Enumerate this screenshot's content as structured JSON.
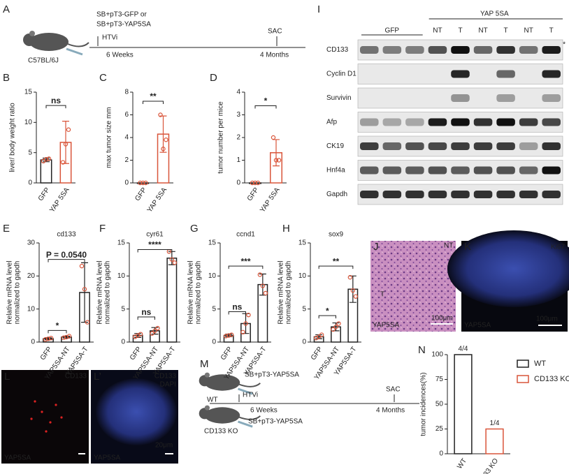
{
  "panels": {
    "A": {
      "label": "A",
      "injection": [
        "SB+pT3-GFP or",
        "SB+pT3-YAP5SA"
      ],
      "method": "HTVi",
      "end": "SAC",
      "t1": "6 Weeks",
      "t2": "4 Months",
      "strain": "C57BL/6J"
    },
    "I": {
      "label": "I",
      "group1": "GFP",
      "group2": "YAP 5SA",
      "lanes": [
        "NT",
        "T",
        "NT",
        "T",
        "NT",
        "T"
      ],
      "rows": [
        "CD133",
        "Cyclin D1",
        "Survivin",
        "Afp",
        "CK19",
        "Hnf4a",
        "Gapdh"
      ],
      "star": "*"
    },
    "J": {
      "label": "J",
      "nt": "NT",
      "t": "T",
      "scale": "100μm",
      "sample": "YAP5SA"
    },
    "K": {
      "label": "K",
      "stain": "Ki67",
      "scale": "100μm",
      "sample": "YAP5SA"
    },
    "L": {
      "label": "L",
      "stain": "CD133",
      "sample": "YAP5SA"
    },
    "L2": {
      "label": "L’",
      "stain": "CD133",
      "stain2": "DAPI",
      "scale": "20μm",
      "sample": "YAP5SA"
    },
    "M": {
      "label": "M",
      "wt": "WT",
      "injection1": "SB+pT3-YAP5SA",
      "method": "HTVi",
      "end": "SAC",
      "t1": "6 Weeks",
      "t2": "4 Months",
      "ko": "CD133 KO",
      "injection2": "SB+pT3-YAP5SA"
    }
  },
  "chart_data": [
    {
      "type": "bar",
      "panel": "B",
      "ylabel": "liver/ body weight ratio",
      "categories": [
        "GFP",
        "YAP 5SA"
      ],
      "colors": [
        "#222222",
        "#d9553a"
      ],
      "values": [
        3.8,
        6.7
      ],
      "errors": [
        0.3,
        3.5
      ],
      "points": [
        [
          3.6,
          3.9,
          4.0
        ],
        [
          3.4,
          6.4,
          8.8
        ]
      ],
      "ylim": [
        0,
        15
      ],
      "yticks": [
        0,
        5,
        10,
        15
      ],
      "annotations": [
        "ns"
      ]
    },
    {
      "type": "bar",
      "panel": "C",
      "ylabel": "max tumor size mm",
      "categories": [
        "GFP",
        "YAP 5SA"
      ],
      "colors": [
        "#222222",
        "#d9553a"
      ],
      "values": [
        0,
        4.3
      ],
      "errors": [
        0,
        1.6
      ],
      "points": [
        [
          0,
          0,
          0
        ],
        [
          6,
          3,
          3.8
        ]
      ],
      "ylim": [
        0,
        8
      ],
      "yticks": [
        0,
        2,
        4,
        6,
        8
      ],
      "annotations": [
        "**"
      ]
    },
    {
      "type": "bar",
      "panel": "D",
      "ylabel": "tumor number per mice",
      "categories": [
        "GFP",
        "YAP 5SA"
      ],
      "colors": [
        "#222222",
        "#d9553a"
      ],
      "values": [
        0,
        1.33
      ],
      "errors": [
        0,
        0.58
      ],
      "points": [
        [
          0,
          0,
          0
        ],
        [
          2,
          1,
          1
        ]
      ],
      "ylim": [
        0,
        4
      ],
      "yticks": [
        0,
        1,
        2,
        3,
        4
      ],
      "annotations": [
        "*"
      ]
    },
    {
      "type": "bar",
      "panel": "E",
      "title": "cd133",
      "ylabel": [
        "Relative mRNA level",
        "normalized to gapdh"
      ],
      "categories": [
        "GFP",
        "YAP5SA-NT",
        "YAP5SA-T"
      ],
      "colors": [
        "#222222",
        "#222222",
        "#222222"
      ],
      "values": [
        1,
        1.5,
        15
      ],
      "errors": [
        0.3,
        0.3,
        9
      ],
      "points": [
        [
          0.8,
          1,
          1.2
        ],
        [
          1.3,
          1.5,
          1.8
        ],
        [
          23,
          16,
          6
        ]
      ],
      "ylim": [
        0,
        30
      ],
      "yticks": [
        0,
        10,
        20,
        30
      ],
      "annotations": [
        "*",
        "P = 0.0540"
      ]
    },
    {
      "type": "bar",
      "panel": "F",
      "title": "cyr61",
      "ylabel": [
        "Relative mRNA level",
        "normalized to gapdh"
      ],
      "categories": [
        "GFP",
        "YAP5SA-NT",
        "YAP5SA-T"
      ],
      "colors": [
        "#222222",
        "#222222",
        "#222222"
      ],
      "values": [
        1,
        1.7,
        12.7
      ],
      "errors": [
        0.3,
        0.5,
        1
      ],
      "points": [
        [
          0.8,
          1,
          1.2
        ],
        [
          1.3,
          1.7,
          2.1
        ],
        [
          13.7,
          12.5,
          12
        ]
      ],
      "ylim": [
        0,
        15
      ],
      "yticks": [
        0,
        5,
        10,
        15
      ],
      "annotations": [
        "ns",
        "****"
      ]
    },
    {
      "type": "bar",
      "panel": "G",
      "title": "ccnd1",
      "ylabel": [
        "Relative mRNA level",
        "normalized to gapdh"
      ],
      "categories": [
        "GFP",
        "YAP5SA-NT",
        "YAP5SA-T"
      ],
      "colors": [
        "#222222",
        "#222222",
        "#222222"
      ],
      "values": [
        1,
        2.8,
        8.7
      ],
      "errors": [
        0.2,
        1.5,
        1.6
      ],
      "points": [
        [
          0.9,
          1,
          1.1
        ],
        [
          1.5,
          2.8,
          4.1
        ],
        [
          10.2,
          8.5,
          7.4
        ]
      ],
      "ylim": [
        0,
        15
      ],
      "yticks": [
        0,
        5,
        10,
        15
      ],
      "annotations": [
        "ns",
        "***"
      ]
    },
    {
      "type": "bar",
      "panel": "H",
      "title": "sox9",
      "ylabel": [
        "Relative mRNA level",
        "normalized to gapdh"
      ],
      "categories": [
        "GFP",
        "YAP5SA-NT",
        "YAP5SA-T"
      ],
      "colors": [
        "#222222",
        "#222222",
        "#222222"
      ],
      "values": [
        0.8,
        2.3,
        8
      ],
      "errors": [
        0.3,
        0.6,
        2
      ],
      "points": [
        [
          0.6,
          0.8,
          1.1
        ],
        [
          1.9,
          2.3,
          2.8
        ],
        [
          9.8,
          7.8,
          6.9
        ]
      ],
      "ylim": [
        0,
        15
      ],
      "yticks": [
        0,
        5,
        10,
        15
      ],
      "annotations": [
        "*",
        "**"
      ]
    },
    {
      "type": "bar",
      "panel": "N",
      "ylabel": "tumor incidences(%)",
      "categories": [
        "WT",
        "CD133 KO"
      ],
      "colors": [
        "#222222",
        "#d9553a"
      ],
      "values": [
        100,
        25
      ],
      "value_labels": [
        "4/4",
        "1/4"
      ],
      "ylim": [
        0,
        100
      ],
      "yticks": [
        0,
        25,
        50,
        75,
        100
      ],
      "legend": [
        "WT",
        "CD133 KO"
      ]
    }
  ]
}
